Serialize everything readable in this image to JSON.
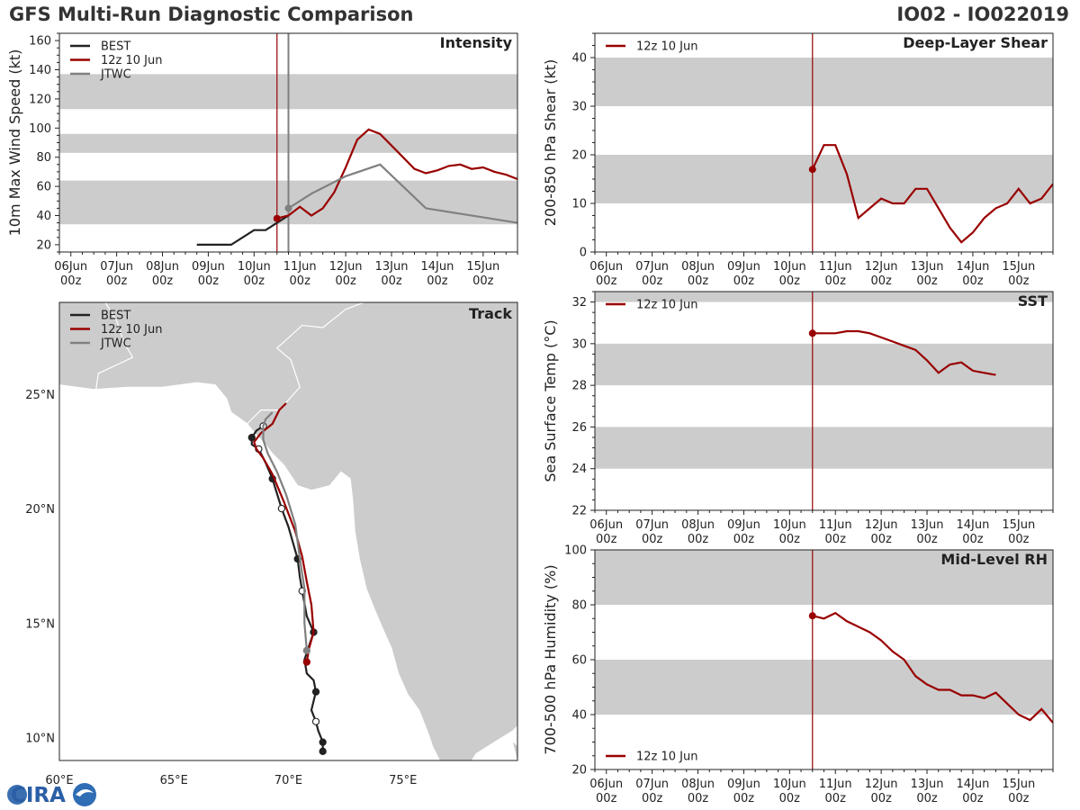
{
  "header": {
    "left_title": "GFS Multi-Run Diagnostic Comparison",
    "right_title": "IO02 - IO022019"
  },
  "logo": {
    "text": "CIRA"
  },
  "colors": {
    "best": "#222222",
    "gfs": "#990000",
    "jtwc": "#808080",
    "band": "#cccccc",
    "land": "#cccccc",
    "ocean": "#ffffff",
    "frame": "#222222"
  },
  "time_axis": {
    "days": [
      "06Jun",
      "07Jun",
      "08Jun",
      "09Jun",
      "10Jun",
      "11Jun",
      "12Jun",
      "13Jun",
      "14Jun",
      "15Jun"
    ],
    "hour": "00z",
    "init_day": 10.5,
    "jtwc_day": 10.75
  },
  "chart_data": [
    {
      "id": "intensity",
      "type": "line",
      "title": "Intensity",
      "ylabel": "10m Max Wind Speed (kt)",
      "xlim": [
        5.75,
        15.75
      ],
      "ylim": [
        15,
        165
      ],
      "yticks": [
        20,
        40,
        60,
        80,
        100,
        120,
        140,
        160
      ],
      "bands": [
        [
          34,
          64
        ],
        [
          83,
          96
        ],
        [
          113,
          137
        ]
      ],
      "legend": [
        "BEST",
        "12z 10 Jun",
        "JTWC"
      ],
      "series": [
        {
          "name": "BEST",
          "color_key": "best",
          "x": [
            8.75,
            9.0,
            9.5,
            10.0,
            10.25,
            10.5,
            10.75
          ],
          "y": [
            20,
            20,
            20,
            30,
            30,
            35,
            40
          ]
        },
        {
          "name": "12z 10 Jun",
          "color_key": "gfs",
          "marker_first": true,
          "x": [
            10.5,
            10.75,
            11.0,
            11.25,
            11.5,
            11.75,
            12.0,
            12.25,
            12.5,
            12.75,
            13.0,
            13.25,
            13.5,
            13.75,
            14.0,
            14.25,
            14.5,
            14.75,
            15.0,
            15.25,
            15.5,
            15.75
          ],
          "y": [
            38,
            40,
            46,
            40,
            45,
            56,
            73,
            92,
            99,
            96,
            88,
            80,
            72,
            69,
            71,
            74,
            75,
            72,
            73,
            70,
            68,
            65
          ]
        },
        {
          "name": "JTWC",
          "color_key": "jtwc",
          "marker_first": true,
          "x": [
            10.75,
            11.25,
            12.0,
            12.75,
            13.75,
            15.75
          ],
          "y": [
            45,
            55,
            67,
            75,
            45,
            35
          ]
        }
      ]
    },
    {
      "id": "shear",
      "type": "line",
      "title": "Deep-Layer Shear",
      "ylabel": "200-850 hPa Shear (kt)",
      "xlim": [
        5.75,
        15.75
      ],
      "ylim": [
        0,
        45
      ],
      "yticks": [
        0,
        10,
        20,
        30,
        40
      ],
      "bands": [
        [
          10,
          20
        ],
        [
          30,
          40
        ]
      ],
      "legend": [
        "12z 10 Jun"
      ],
      "series": [
        {
          "name": "12z 10 Jun",
          "color_key": "gfs",
          "marker_first": true,
          "x": [
            10.5,
            10.75,
            11.0,
            11.25,
            11.5,
            11.75,
            12.0,
            12.25,
            12.5,
            12.75,
            13.0,
            13.25,
            13.5,
            13.75,
            14.0,
            14.25,
            14.5,
            14.75,
            15.0,
            15.25,
            15.5,
            15.75
          ],
          "y": [
            17,
            22,
            22,
            16,
            7,
            9,
            11,
            10,
            10,
            13,
            13,
            9,
            5,
            2,
            4,
            7,
            9,
            10,
            13,
            10,
            11,
            14
          ]
        }
      ]
    },
    {
      "id": "sst",
      "type": "line",
      "title": "SST",
      "ylabel": "Sea Surface Temp (°C)",
      "xlim": [
        5.75,
        15.75
      ],
      "ylim": [
        22,
        32.5
      ],
      "yticks": [
        22,
        24,
        26,
        28,
        30,
        32
      ],
      "bands": [
        [
          24,
          26
        ],
        [
          28,
          30
        ],
        [
          32,
          33
        ]
      ],
      "legend": [
        "12z 10 Jun"
      ],
      "series": [
        {
          "name": "12z 10 Jun",
          "color_key": "gfs",
          "marker_first": true,
          "x": [
            10.5,
            10.75,
            11.0,
            11.25,
            11.5,
            11.75,
            12.0,
            12.25,
            12.5,
            12.75,
            13.0,
            13.25,
            13.5,
            13.75,
            14.0,
            14.25,
            14.5
          ],
          "y": [
            30.5,
            30.5,
            30.5,
            30.6,
            30.6,
            30.5,
            30.3,
            30.1,
            29.9,
            29.7,
            29.2,
            28.6,
            29.0,
            29.1,
            28.7,
            28.6,
            28.5
          ]
        }
      ]
    },
    {
      "id": "rh",
      "type": "line",
      "title": "Mid-Level RH",
      "ylabel": "700-500 hPa Humidity (%)",
      "xlim": [
        5.75,
        15.75
      ],
      "ylim": [
        20,
        100
      ],
      "yticks": [
        20,
        40,
        60,
        80,
        100
      ],
      "bands": [
        [
          40,
          60
        ],
        [
          80,
          100
        ]
      ],
      "legend": [
        "12z 10 Jun"
      ],
      "legend_position": "bottom-left",
      "series": [
        {
          "name": "12z 10 Jun",
          "color_key": "gfs",
          "marker_first": true,
          "x": [
            10.5,
            10.75,
            11.0,
            11.25,
            11.5,
            11.75,
            12.0,
            12.25,
            12.5,
            12.75,
            13.0,
            13.25,
            13.5,
            13.75,
            14.0,
            14.25,
            14.5,
            14.75,
            15.0,
            15.25,
            15.5,
            15.75
          ],
          "y": [
            76,
            75,
            77,
            74,
            72,
            70,
            67,
            63,
            60,
            54,
            51,
            49,
            49,
            47,
            47,
            46,
            48,
            44,
            40,
            38,
            42,
            37
          ]
        }
      ]
    },
    {
      "id": "track",
      "type": "scatter",
      "title": "Track",
      "xlim": [
        60,
        80
      ],
      "ylim": [
        9,
        29
      ],
      "xticks": [
        60,
        65,
        70,
        75
      ],
      "xtick_labels": [
        "60°E",
        "65°E",
        "70°E",
        "75°E"
      ],
      "yticks": [
        10,
        15,
        20,
        25
      ],
      "ytick_labels": [
        "10°N",
        "15°N",
        "20°N",
        "25°N"
      ],
      "legend": [
        "BEST",
        "12z 10 Jun",
        "JTWC"
      ],
      "series": [
        {
          "name": "BEST",
          "color_key": "best",
          "lon": [
            71.5,
            71.5,
            71.3,
            71.2,
            71.0,
            71.2,
            71.1,
            70.8,
            70.7,
            71.1,
            70.8,
            70.6,
            70.5,
            70.4,
            70.0,
            69.7,
            69.3,
            69.0,
            68.7,
            68.4,
            68.4,
            68.6,
            68.9
          ],
          "lat": [
            9.4,
            9.8,
            10.3,
            10.7,
            11.2,
            12.0,
            12.5,
            12.8,
            13.4,
            14.6,
            15.3,
            16.4,
            17.0,
            17.8,
            19.2,
            20.0,
            21.3,
            22.0,
            22.6,
            22.8,
            23.1,
            23.4,
            23.6
          ],
          "filled": [
            true,
            true,
            false,
            false,
            false,
            true,
            false,
            false,
            false,
            true,
            false,
            false,
            false,
            true,
            false,
            false,
            true,
            false,
            false,
            false,
            true,
            false,
            false
          ],
          "markers": [
            0,
            1,
            3,
            5,
            9,
            11,
            13,
            15,
            16,
            18,
            20,
            22
          ]
        },
        {
          "name": "12z 10 Jun",
          "color_key": "gfs",
          "lon": [
            70.8,
            70.9,
            71.1,
            71.0,
            70.8,
            70.6,
            70.3,
            69.8,
            69.3,
            68.9,
            68.6,
            68.5,
            68.8,
            69.3,
            69.6,
            69.9
          ],
          "lat": [
            13.3,
            13.9,
            14.6,
            15.8,
            16.8,
            17.9,
            19.0,
            20.3,
            21.5,
            22.2,
            22.6,
            22.9,
            23.3,
            23.7,
            24.3,
            24.6
          ],
          "markers": [
            0
          ]
        },
        {
          "name": "JTWC",
          "color_key": "jtwc",
          "lon": [
            70.8,
            70.7,
            70.7,
            70.5,
            70.3,
            69.9,
            69.5,
            69.1,
            68.9,
            68.9,
            69.0,
            69.3
          ],
          "lat": [
            13.8,
            15.0,
            16.5,
            17.8,
            19.3,
            20.6,
            21.6,
            22.4,
            23.0,
            23.6,
            23.9,
            24.2
          ],
          "markers": [
            0
          ]
        }
      ]
    }
  ]
}
